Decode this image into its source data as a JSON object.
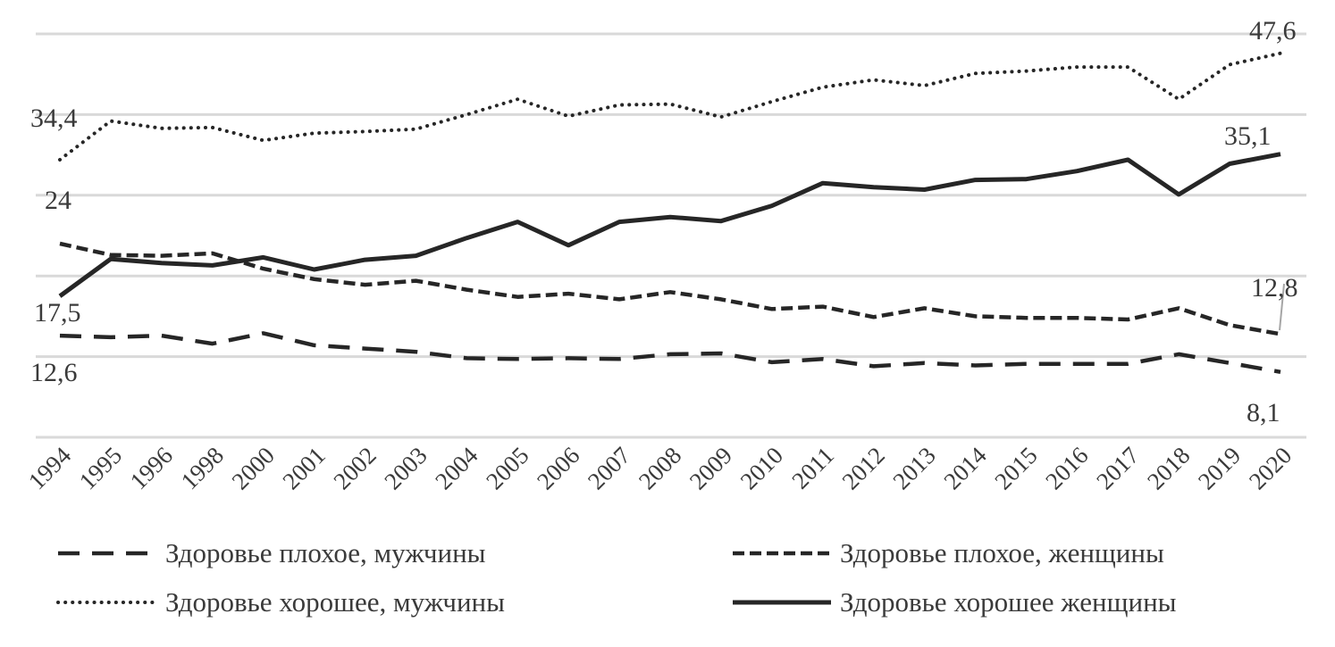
{
  "chart_data": {
    "type": "line",
    "title": "",
    "xlabel": "",
    "ylabel": "",
    "ylim": [
      0,
      50
    ],
    "grid": true,
    "legend_placement": "bottom",
    "categories": [
      "1994",
      "1995",
      "1996",
      "1998",
      "2000",
      "2001",
      "2002",
      "2003",
      "2004",
      "2005",
      "2006",
      "2007",
      "2008",
      "2009",
      "2010",
      "2011",
      "2012",
      "2013",
      "2014",
      "2015",
      "2016",
      "2017",
      "2018",
      "2019",
      "2020"
    ],
    "series": [
      {
        "name": "Здоровье плохое, мужчины",
        "style": "long-dash",
        "values": [
          12.6,
          12.4,
          12.6,
          11.6,
          12.9,
          11.4,
          11.0,
          10.6,
          9.8,
          9.7,
          9.8,
          9.7,
          10.3,
          10.4,
          9.3,
          9.7,
          8.8,
          9.2,
          8.9,
          9.1,
          9.1,
          9.1,
          10.3,
          9.2,
          8.1
        ]
      },
      {
        "name": "Здоровье плохое, женщины",
        "style": "short-dash",
        "values": [
          24.0,
          22.6,
          22.5,
          22.8,
          20.9,
          19.6,
          18.9,
          19.4,
          18.3,
          17.4,
          17.8,
          17.1,
          18.0,
          17.1,
          15.9,
          16.2,
          14.9,
          16.0,
          15.0,
          14.8,
          14.8,
          14.6,
          16.0,
          13.9,
          12.8
        ]
      },
      {
        "name": "Здоровье хорошее, мужчины",
        "style": "dotted",
        "values": [
          34.4,
          39.2,
          38.3,
          38.4,
          36.8,
          37.7,
          37.9,
          38.2,
          40.0,
          41.9,
          39.8,
          41.2,
          41.3,
          39.7,
          41.6,
          43.4,
          44.3,
          43.6,
          45.1,
          45.4,
          45.9,
          45.9,
          41.9,
          46.2,
          47.6
        ]
      },
      {
        "name": "Здоровье хорошее женщины",
        "style": "solid",
        "values": [
          17.5,
          22.1,
          21.6,
          21.3,
          22.3,
          20.8,
          22.0,
          22.5,
          24.7,
          26.7,
          23.8,
          26.7,
          27.3,
          26.8,
          28.7,
          31.5,
          31.0,
          30.7,
          31.9,
          32.0,
          33.0,
          34.4,
          30.1,
          33.9,
          35.1
        ]
      }
    ],
    "data_labels": {
      "men_poor_first": "12,6",
      "men_poor_last": "8,1",
      "women_poor_first": "24",
      "women_poor_last": "12,8",
      "men_good_first": "34,4",
      "men_good_last": "47,6",
      "women_good_first": "17,5",
      "women_good_last": "35,1"
    },
    "colors": {
      "line": "#262626",
      "grid": "#d9d9d9",
      "leader": "#a6a6a6"
    }
  }
}
